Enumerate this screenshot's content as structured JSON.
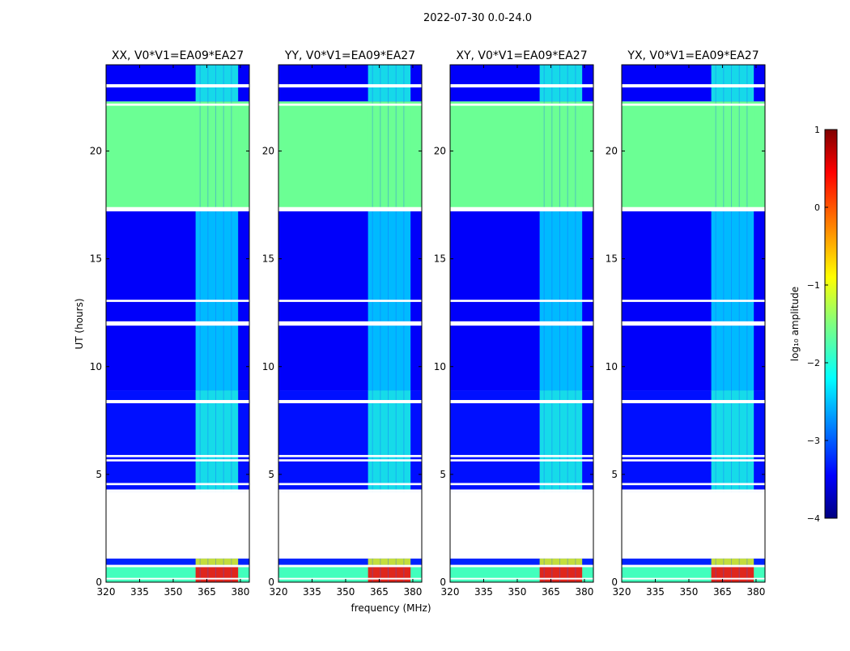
{
  "figure": {
    "suptitle": "2022-07-30 0.0-24.0"
  },
  "chart_data": {
    "type": "heatmap",
    "xlabel": "frequency (MHz)",
    "ylabel": "UT (hours)",
    "xlim": [
      320,
      384
    ],
    "ylim": [
      0,
      24
    ],
    "x_ticks": [
      "320",
      "335",
      "350",
      "365",
      "380"
    ],
    "y_ticks": [
      "0",
      "5",
      "10",
      "15",
      "20"
    ],
    "colormap": "jet",
    "panels": [
      {
        "title": "XX, V0*V1=EA09*EA27",
        "bright_rfi_band_mhz": [
          360,
          379
        ]
      },
      {
        "title": "YY, V0*V1=EA09*EA27",
        "bright_rfi_band_mhz": [
          360,
          379
        ]
      },
      {
        "title": "XY, V0*V1=EA09*EA27",
        "bright_rfi_band_mhz": [
          360,
          379
        ]
      },
      {
        "title": "YX, V0*V1=EA09*EA27",
        "bright_rfi_band_mhz": [
          360,
          379
        ]
      }
    ],
    "no_data_ut": [
      [
        1.1,
        4.2
      ]
    ],
    "flagged_ut": [
      [
        0.7,
        0.8
      ],
      [
        0.15,
        0.2
      ],
      [
        4.2,
        4.3
      ],
      [
        4.5,
        4.6
      ],
      [
        5.6,
        5.7
      ],
      [
        5.8,
        5.9
      ],
      [
        8.3,
        8.45
      ],
      [
        11.9,
        12.1
      ],
      [
        13.0,
        13.1
      ],
      [
        17.2,
        17.4
      ],
      [
        22.95,
        23.1
      ],
      [
        22.1,
        22.2
      ]
    ],
    "segments": [
      {
        "ut": [
          0.0,
          0.7
        ],
        "log10_amplitude": -1.8,
        "rfi_log10_amplitude": 0.4
      },
      {
        "ut": [
          0.8,
          1.1
        ],
        "log10_amplitude": -3.2,
        "rfi_log10_amplitude": -1.0
      },
      {
        "ut": [
          4.2,
          8.9
        ],
        "log10_amplitude": -3.3,
        "rfi_log10_amplitude": -2.0
      },
      {
        "ut": [
          8.9,
          17.3
        ],
        "log10_amplitude": -3.4,
        "rfi_log10_amplitude": -2.3
      },
      {
        "ut": [
          17.3,
          22.3
        ],
        "log10_amplitude": -1.6,
        "rfi_log10_amplitude": -1.6
      },
      {
        "ut": [
          22.3,
          24.0
        ],
        "log10_amplitude": -3.4,
        "rfi_log10_amplitude": -2.0
      }
    ],
    "colorbar": {
      "label": "log₁₀ amplitude",
      "range": [
        -4,
        1
      ],
      "ticks": [
        "1",
        "0",
        "−1",
        "−2",
        "−3",
        "−4"
      ]
    },
    "grid": false
  }
}
